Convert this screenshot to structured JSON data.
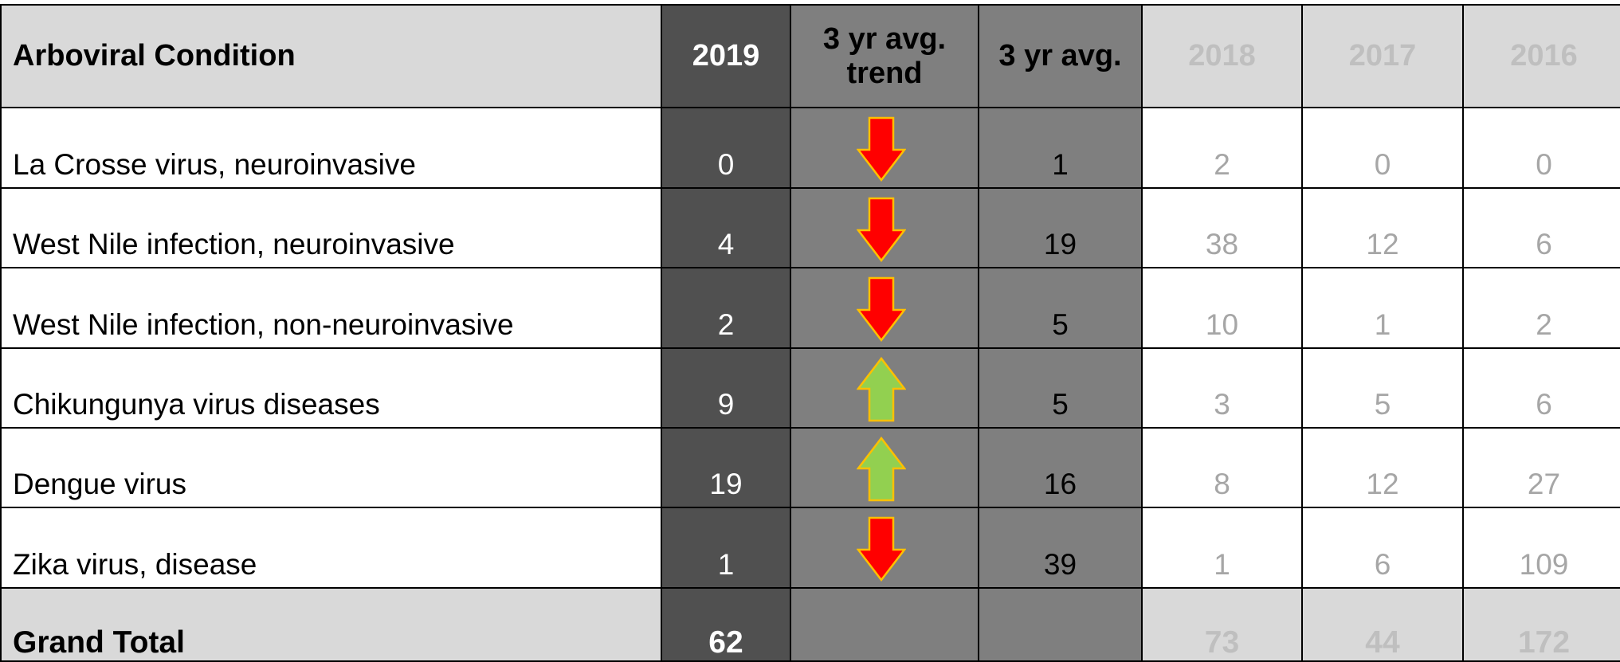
{
  "table": {
    "header": [
      "Arboviral Condition",
      "2019",
      "3 yr avg. trend",
      "3 yr avg.",
      "2018",
      "2017",
      "2016"
    ],
    "rows": [
      [
        "La Crosse virus, neuroinvasive",
        0,
        1,
        2,
        0,
        0
      ],
      [
        "West Nile infection, neuroinvasive",
        4,
        19,
        38,
        12,
        6
      ],
      [
        "West Nile infection, non-neuroinvasive",
        2,
        5,
        10,
        1,
        2
      ],
      [
        "Chikungunya virus diseases",
        9,
        5,
        3,
        5,
        6
      ],
      [
        "Dengue virus",
        19,
        16,
        8,
        12,
        27
      ],
      [
        "Zika virus, disease",
        1,
        39,
        1,
        6,
        109
      ]
    ],
    "total": [
      "Grand Total",
      62,
      73,
      44,
      172
    ]
  }
}
